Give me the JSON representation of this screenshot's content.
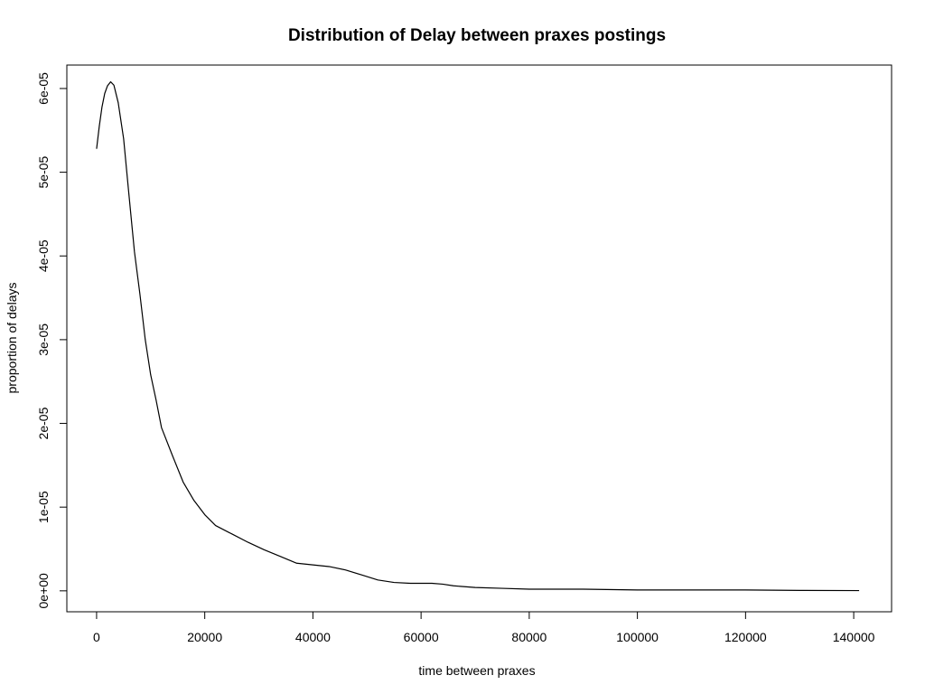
{
  "chart_data": {
    "type": "line",
    "title": "Distribution of Delay between praxes postings",
    "xlabel": "time between praxes",
    "ylabel": "proportion of delays",
    "xlim": [
      -5500,
      147000
    ],
    "ylim": [
      -2.5e-06,
      6.28e-05
    ],
    "grid": false,
    "legend": "none",
    "line_color": "#000000",
    "x_ticks": [
      {
        "value": 0,
        "label": "0"
      },
      {
        "value": 20000,
        "label": "20000"
      },
      {
        "value": 40000,
        "label": "40000"
      },
      {
        "value": 60000,
        "label": "60000"
      },
      {
        "value": 80000,
        "label": "80000"
      },
      {
        "value": 100000,
        "label": "100000"
      },
      {
        "value": 120000,
        "label": "120000"
      },
      {
        "value": 140000,
        "label": "140000"
      }
    ],
    "y_ticks": [
      {
        "value": 0,
        "label": "0e+00"
      },
      {
        "value": 1e-05,
        "label": "1e-05"
      },
      {
        "value": 2e-05,
        "label": "2e-05"
      },
      {
        "value": 3e-05,
        "label": "3e-05"
      },
      {
        "value": 4e-05,
        "label": "4e-05"
      },
      {
        "value": 5e-05,
        "label": "5e-05"
      },
      {
        "value": 6e-05,
        "label": "6e-05"
      }
    ],
    "series": [
      {
        "x": [
          0,
          500,
          1000,
          1500,
          2000,
          2600,
          3200,
          4000,
          5000,
          6000,
          7000,
          8000,
          9000,
          10000,
          11000,
          12000,
          14000,
          16000,
          18000,
          20000,
          22000,
          25000,
          28000,
          31000,
          34000,
          37000,
          40000,
          43000,
          46000,
          49000,
          52000,
          55000,
          58000,
          62000,
          64000,
          66000,
          70000,
          75000,
          80000,
          90000,
          100000,
          110000,
          113000,
          120000,
          130000,
          141000
        ],
        "y": [
          5.28e-05,
          5.55e-05,
          5.78e-05,
          5.94e-05,
          6.03e-05,
          6.08e-05,
          6.04e-05,
          5.83e-05,
          5.4e-05,
          4.72e-05,
          4.05e-05,
          3.55e-05,
          3e-05,
          2.58e-05,
          2.28e-05,
          1.95e-05,
          1.62e-05,
          1.3e-05,
          1.08e-05,
          9.1e-06,
          7.8e-06,
          6.8e-06,
          5.8e-06,
          4.9e-06,
          4.1e-06,
          3.3e-06,
          3.1e-06,
          2.9e-06,
          2.5e-06,
          1.9e-06,
          1.3e-06,
          1e-06,
          9e-07,
          9e-07,
          8e-07,
          6e-07,
          4e-07,
          3e-07,
          2e-07,
          2e-07,
          1e-07,
          1e-07,
          1e-07,
          1e-07,
          5e-08,
          3e-08
        ]
      }
    ]
  }
}
